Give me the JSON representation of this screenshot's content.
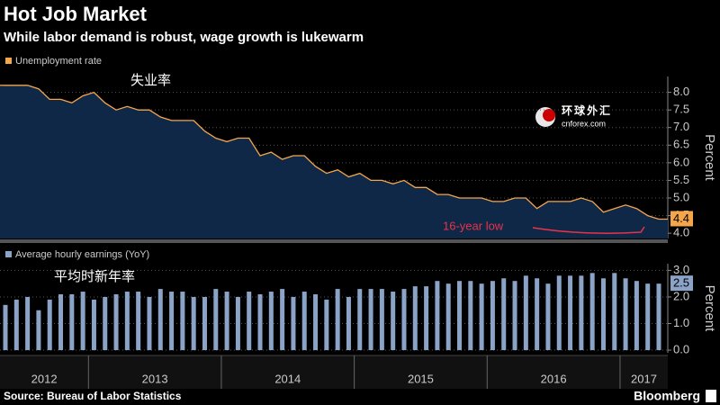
{
  "header": {
    "title": "Hot Job Market",
    "subtitle": "While labor demand is robust, wage growth is lukewarm"
  },
  "chart_data": [
    {
      "type": "area-line",
      "annotation": "失业率",
      "note": "16-year low",
      "y_label": "Percent",
      "series": [
        {
          "name": "Unemployment rate",
          "color": "#f5a64b",
          "fill": "#0f2847",
          "values": [
            8.2,
            8.2,
            8.2,
            8.1,
            7.8,
            7.8,
            7.7,
            7.9,
            8.0,
            7.7,
            7.5,
            7.6,
            7.5,
            7.5,
            7.3,
            7.2,
            7.2,
            7.2,
            6.9,
            6.7,
            6.6,
            6.7,
            6.7,
            6.2,
            6.3,
            6.1,
            6.2,
            6.2,
            5.9,
            5.7,
            5.8,
            5.6,
            5.7,
            5.5,
            5.5,
            5.4,
            5.5,
            5.3,
            5.3,
            5.1,
            5.1,
            5.0,
            5.0,
            5.0,
            4.9,
            4.9,
            5.0,
            5.0,
            4.7,
            4.9,
            4.9,
            4.9,
            5.0,
            4.9,
            4.6,
            4.7,
            4.8,
            4.7,
            4.5,
            4.4
          ]
        }
      ],
      "ylim": [
        3.85,
        8.45
      ],
      "yticks": [
        {
          "value": 4,
          "label": "4.0"
        },
        {
          "value": 4.5,
          "label": "4.5"
        },
        {
          "value": 5,
          "label": "5.0"
        },
        {
          "value": 5.5,
          "label": "5.5"
        },
        {
          "value": 6,
          "label": "6.0"
        },
        {
          "value": 6.5,
          "label": "6.5"
        },
        {
          "value": 7,
          "label": "7.0"
        },
        {
          "value": 7.5,
          "label": "7.5"
        },
        {
          "value": 8,
          "label": "8.0"
        }
      ]
    },
    {
      "type": "bar",
      "annotation": "平均时新年率",
      "y_label": "Percent",
      "categories": [
        "2012",
        null,
        null,
        null,
        null,
        null,
        null,
        null,
        "2013",
        null,
        null,
        null,
        null,
        null,
        null,
        null,
        null,
        null,
        null,
        null,
        "2014",
        null,
        null,
        null,
        null,
        null,
        null,
        null,
        null,
        null,
        null,
        null,
        "2015",
        null,
        null,
        null,
        null,
        null,
        null,
        null,
        null,
        null,
        null,
        null,
        "2016",
        null,
        null,
        null,
        null,
        null,
        null,
        null,
        null,
        null,
        null,
        null,
        "2017",
        null,
        null,
        null
      ],
      "series": [
        {
          "name": "Average hourly earnings (YoY)",
          "color": "#8ba3c7",
          "values": [
            1.7,
            1.9,
            2.0,
            1.5,
            1.9,
            2.1,
            2.1,
            2.2,
            1.9,
            2.0,
            2.1,
            2.2,
            2.2,
            2.0,
            2.3,
            2.2,
            2.2,
            2.0,
            2.0,
            2.3,
            2.2,
            2.0,
            2.2,
            2.1,
            2.2,
            2.3,
            2.0,
            2.2,
            2.1,
            1.9,
            2.3,
            2.0,
            2.3,
            2.3,
            2.3,
            2.2,
            2.3,
            2.4,
            2.4,
            2.6,
            2.5,
            2.6,
            2.6,
            2.5,
            2.6,
            2.7,
            2.6,
            2.8,
            2.7,
            2.5,
            2.8,
            2.8,
            2.8,
            2.9,
            2.7,
            2.9,
            2.7,
            2.6,
            2.5,
            2.5
          ]
        }
      ],
      "ylim": [
        -0.1,
        3.25
      ],
      "yticks": [
        {
          "value": 0,
          "label": "0.0"
        },
        {
          "value": 1,
          "label": "1.0"
        },
        {
          "value": 2,
          "label": "2.0"
        },
        {
          "value": 3,
          "label": "3.0"
        }
      ]
    }
  ],
  "footer": {
    "source": "Source: Bureau of Labor Statistics",
    "brand": "Bloomberg"
  },
  "watermark": {
    "name": "环球外汇",
    "site": "cnforex.com"
  }
}
